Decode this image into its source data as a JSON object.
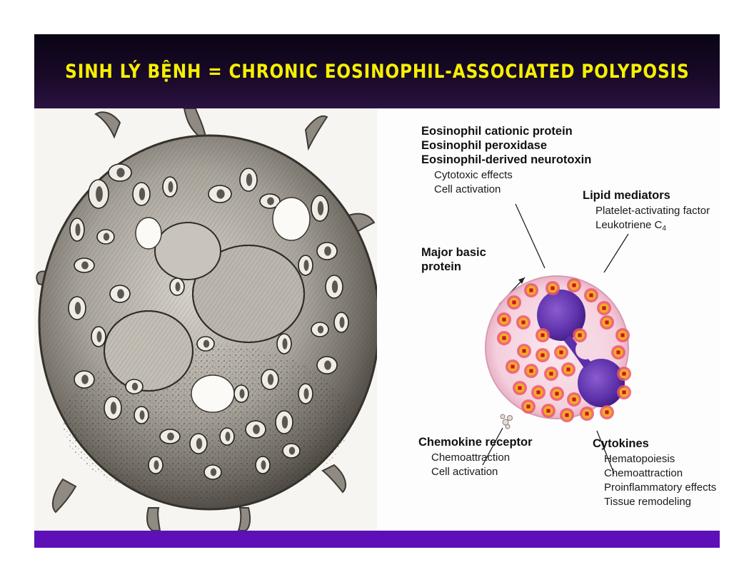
{
  "slide": {
    "title": "SINH LÝ BỆNH = CHRONIC EOSINOPHIL-ASSOCIATED POLYPOSIS"
  },
  "diagram": {
    "granule_proteins": {
      "headings": [
        "Eosinophil cationic protein",
        "Eosinophil peroxidase",
        "Eosinophil-derived neurotoxin"
      ],
      "effects": [
        "Cytotoxic effects",
        "Cell activation"
      ]
    },
    "lipid_mediators": {
      "heading": "Lipid mediators",
      "items": [
        "Platelet-activating factor"
      ],
      "leukotriene_text": "Leukotriene C",
      "leukotriene_subscript": "4"
    },
    "major_basic_protein": {
      "lines": [
        "Major basic",
        "protein"
      ]
    },
    "chemokine_receptor": {
      "heading": "Chemokine receptor",
      "items": [
        "Chemoattraction",
        "Cell activation"
      ]
    },
    "cytokines": {
      "heading": "Cytokines",
      "items": [
        "Hematopoiesis",
        "Chemoattraction",
        "Proinflammatory effects",
        "Tissue remodeling"
      ]
    }
  },
  "colors": {
    "title": "#f5f000",
    "header_bg": "#1a0a2a",
    "footer_bar": "#5d10b8",
    "cell_body": "#f6d8e4",
    "nucleus": "#5b2fa8",
    "granule_outer": "#ee5568",
    "granule_core": "#f0b020"
  },
  "icons": [
    "eosinophil-sketch-icon",
    "eosinophil-cell-icon",
    "granule-icon",
    "nucleus-icon",
    "chemokine-receptor-icon"
  ]
}
